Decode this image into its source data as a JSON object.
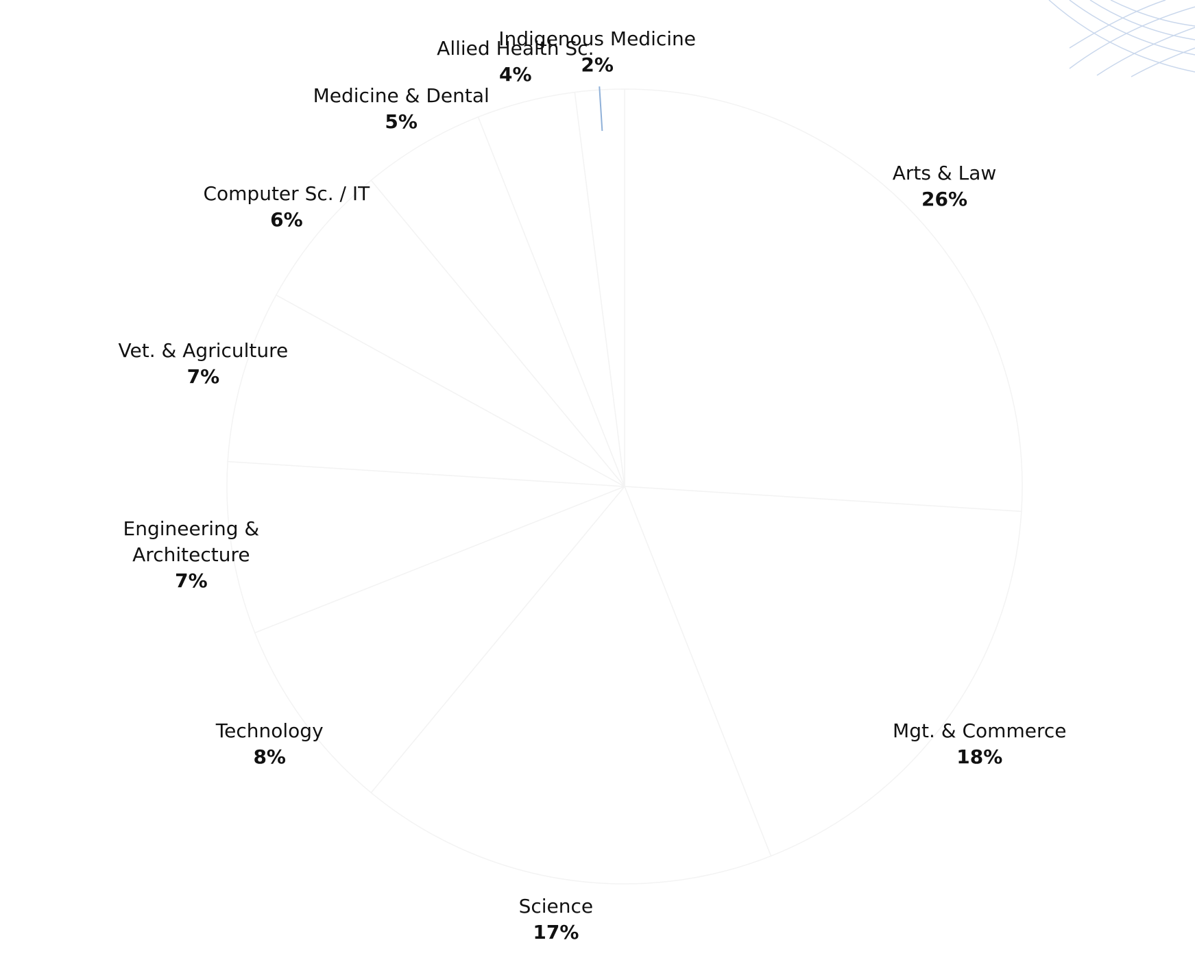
{
  "chart_data": {
    "type": "pie",
    "categories": [
      "Arts & Law",
      "Mgt. & Commerce",
      "Science",
      "Technology",
      "Engineering & Architecture",
      "Vet. & Agriculture",
      "Computer Sc. / IT",
      "Medicine & Dental",
      "Allied Health Sc.",
      "Indigenous Medicine"
    ],
    "values": [
      26,
      18,
      17,
      8,
      7,
      7,
      6,
      5,
      4,
      2
    ],
    "value_labels": [
      "26%",
      "18%",
      "17%",
      "8%",
      "7%",
      "7%",
      "6%",
      "5%",
      "4%",
      "2%"
    ],
    "color": "#ffffff"
  }
}
